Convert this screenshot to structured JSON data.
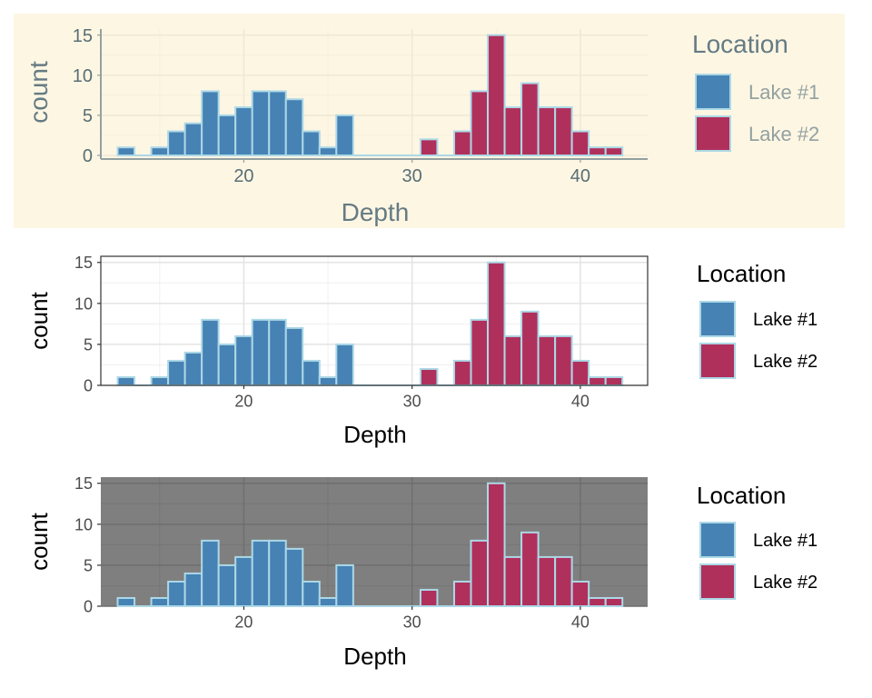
{
  "colors": {
    "lake1": "#4682B4",
    "lake2": "#B0305C",
    "bar_outline": "#ADD8E6"
  },
  "chart_data": [
    {
      "type": "bar",
      "theme": "solarized",
      "title": "",
      "xlabel": "Depth",
      "ylabel": "count",
      "xlim": [
        11.5,
        44
      ],
      "ylim": [
        0,
        15.75
      ],
      "xticks": [
        20,
        30,
        40
      ],
      "yticks": [
        0,
        5,
        10,
        15
      ],
      "xtick_labels": [
        "20",
        "30",
        "40"
      ],
      "ytick_labels": [
        "0",
        "5",
        "10",
        "15"
      ],
      "bin_width": 1,
      "legend": {
        "title": "Location",
        "placement": "right",
        "entries": [
          "Lake #1",
          "Lake #2"
        ]
      },
      "series": [
        {
          "name": "Lake #1",
          "bin_centers": [
            13,
            14,
            15,
            16,
            17,
            18,
            19,
            20,
            21,
            22,
            23,
            24,
            25,
            26,
            27,
            28,
            29,
            30
          ],
          "values": [
            1,
            0,
            1,
            3,
            4,
            8,
            5,
            6,
            8,
            8,
            7,
            3,
            1,
            5,
            0,
            0,
            0,
            0
          ]
        },
        {
          "name": "Lake #2",
          "bin_centers": [
            31,
            32,
            33,
            34,
            35,
            36,
            37,
            38,
            39,
            40,
            41,
            42
          ],
          "values": [
            2,
            0,
            3,
            8,
            15,
            6,
            9,
            6,
            6,
            3,
            1,
            1
          ]
        }
      ]
    },
    {
      "type": "bar",
      "theme": "light",
      "title": "",
      "xlabel": "Depth",
      "ylabel": "count",
      "xlim": [
        11.5,
        44
      ],
      "ylim": [
        0,
        15.75
      ],
      "xticks": [
        20,
        30,
        40
      ],
      "yticks": [
        0,
        5,
        10,
        15
      ],
      "xtick_labels": [
        "20",
        "30",
        "40"
      ],
      "ytick_labels": [
        "0",
        "5",
        "10",
        "15"
      ],
      "bin_width": 1,
      "legend": {
        "title": "Location",
        "placement": "right",
        "entries": [
          "Lake #1",
          "Lake #2"
        ]
      },
      "series": [
        {
          "name": "Lake #1",
          "bin_centers": [
            13,
            14,
            15,
            16,
            17,
            18,
            19,
            20,
            21,
            22,
            23,
            24,
            25,
            26,
            27,
            28,
            29,
            30
          ],
          "values": [
            1,
            0,
            1,
            3,
            4,
            8,
            5,
            6,
            8,
            8,
            7,
            3,
            1,
            5,
            0,
            0,
            0,
            0
          ]
        },
        {
          "name": "Lake #2",
          "bin_centers": [
            31,
            32,
            33,
            34,
            35,
            36,
            37,
            38,
            39,
            40,
            41,
            42
          ],
          "values": [
            2,
            0,
            3,
            8,
            15,
            6,
            9,
            6,
            6,
            3,
            1,
            1
          ]
        }
      ]
    },
    {
      "type": "bar",
      "theme": "dark",
      "title": "",
      "xlabel": "Depth",
      "ylabel": "count",
      "xlim": [
        11.5,
        44
      ],
      "ylim": [
        0,
        15.75
      ],
      "xticks": [
        20,
        30,
        40
      ],
      "yticks": [
        0,
        5,
        10,
        15
      ],
      "xtick_labels": [
        "20",
        "30",
        "40"
      ],
      "ytick_labels": [
        "0",
        "5",
        "10",
        "15"
      ],
      "bin_width": 1,
      "legend": {
        "title": "Location",
        "placement": "right",
        "entries": [
          "Lake #1",
          "Lake #2"
        ]
      },
      "series": [
        {
          "name": "Lake #1",
          "bin_centers": [
            13,
            14,
            15,
            16,
            17,
            18,
            19,
            20,
            21,
            22,
            23,
            24,
            25,
            26,
            27,
            28,
            29,
            30
          ],
          "values": [
            1,
            0,
            1,
            3,
            4,
            8,
            5,
            6,
            8,
            8,
            7,
            3,
            1,
            5,
            0,
            0,
            0,
            0
          ]
        },
        {
          "name": "Lake #2",
          "bin_centers": [
            31,
            32,
            33,
            34,
            35,
            36,
            37,
            38,
            39,
            40,
            41,
            42
          ],
          "values": [
            2,
            0,
            3,
            8,
            15,
            6,
            9,
            6,
            6,
            3,
            1,
            1
          ]
        }
      ]
    }
  ]
}
